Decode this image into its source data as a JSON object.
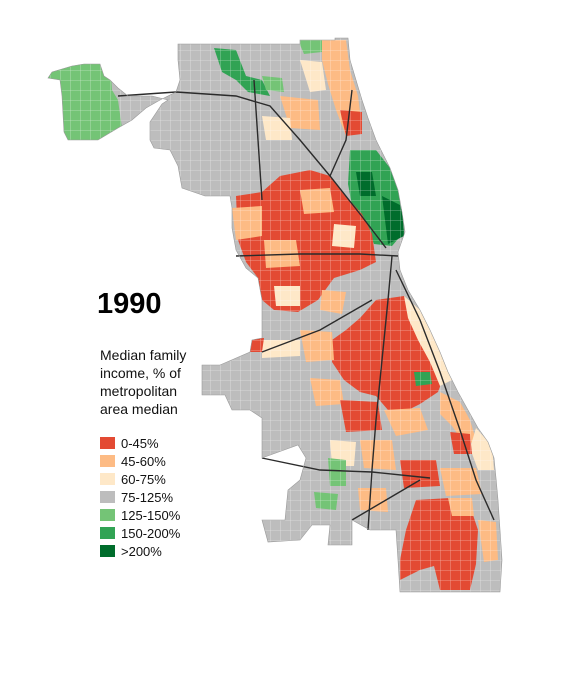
{
  "year": "1990",
  "legend": {
    "title_lines": [
      "Median family",
      "income, % of",
      "metropolitan",
      "area median"
    ],
    "items": [
      {
        "label": "0-45%",
        "color": "#e34a33"
      },
      {
        "label": "45-60%",
        "color": "#fdbb84"
      },
      {
        "label": "60-75%",
        "color": "#fee8c8"
      },
      {
        "label": "75-125%",
        "color": "#bdbdbd"
      },
      {
        "label": "125-150%",
        "color": "#74c476"
      },
      {
        "label": "150-200%",
        "color": "#31a354"
      },
      {
        "label": ">200%",
        "color": "#006d2c"
      }
    ]
  }
}
